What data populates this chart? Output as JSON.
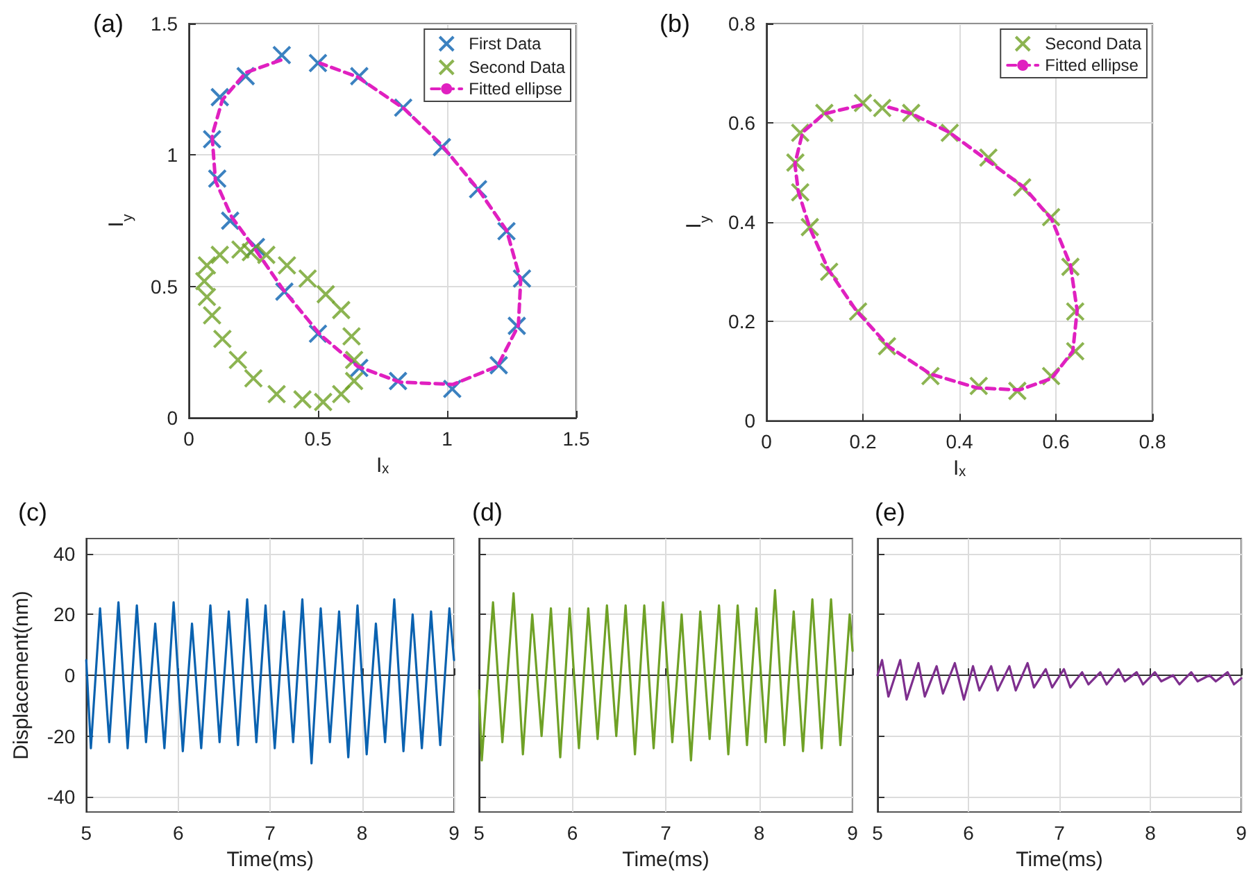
{
  "chart_data": [
    {
      "type": "scatter",
      "title": "(a)",
      "xlabel": "Iₓ",
      "ylabel": "I$_{y}$",
      "xlim": [
        0,
        1.5
      ],
      "ylim": [
        0,
        1.5
      ],
      "xticks": [
        0,
        0.5,
        1,
        1.5
      ],
      "yticks": [
        0,
        0.5,
        1,
        1.5
      ],
      "grid": true,
      "legend": "top right",
      "series": [
        {
          "name": "First Data",
          "type": "scatter",
          "color": "#0a62b0",
          "marker": "cross",
          "x": [
            0.36,
            0.22,
            0.12,
            0.09,
            0.11,
            0.16,
            0.26,
            0.37,
            0.5,
            0.66,
            0.81,
            1.02,
            1.2,
            1.27,
            1.29,
            1.23,
            1.12,
            0.98,
            0.83,
            0.66,
            0.5
          ],
          "values": [
            1.38,
            1.3,
            1.22,
            1.06,
            0.91,
            0.75,
            0.65,
            0.48,
            0.32,
            0.19,
            0.14,
            0.11,
            0.2,
            0.35,
            0.53,
            0.71,
            0.87,
            1.03,
            1.18,
            1.3,
            1.35
          ]
        },
        {
          "name": "Second Data",
          "type": "scatter",
          "color": "#6fa126",
          "marker": "cross",
          "x": [
            0.2,
            0.12,
            0.07,
            0.06,
            0.07,
            0.09,
            0.13,
            0.19,
            0.25,
            0.34,
            0.44,
            0.52,
            0.59,
            0.64,
            0.64,
            0.63,
            0.59,
            0.53,
            0.46,
            0.38,
            0.3,
            0.24
          ],
          "values": [
            0.64,
            0.62,
            0.58,
            0.52,
            0.46,
            0.39,
            0.3,
            0.22,
            0.15,
            0.09,
            0.07,
            0.06,
            0.09,
            0.14,
            0.22,
            0.31,
            0.41,
            0.47,
            0.53,
            0.58,
            0.62,
            0.63
          ]
        },
        {
          "name": "Fitted ellipse",
          "type": "line",
          "color": "#e020c0",
          "marker": "none",
          "line_style": "dashed",
          "x": [
            0.356,
            0.22,
            0.13,
            0.09,
            0.103,
            0.166,
            0.256,
            0.365,
            0.509,
            0.653,
            0.816,
            1.023,
            1.195,
            1.276,
            1.285,
            1.231,
            1.123,
            0.978,
            0.834,
            0.653,
            0.509
          ],
          "values": [
            1.361,
            1.313,
            1.21,
            1.074,
            0.902,
            0.764,
            0.643,
            0.488,
            0.316,
            0.196,
            0.136,
            0.127,
            0.196,
            0.351,
            0.523,
            0.712,
            0.866,
            1.039,
            1.176,
            1.297,
            1.349
          ]
        }
      ]
    },
    {
      "type": "scatter",
      "title": "(b)",
      "xlabel": "Iₓ",
      "ylabel": "I$_{y}$",
      "xlim": [
        0,
        0.8
      ],
      "ylim": [
        0,
        0.8
      ],
      "xticks": [
        0,
        0.2,
        0.4,
        0.6,
        0.8
      ],
      "yticks": [
        0,
        0.2,
        0.4,
        0.6,
        0.8
      ],
      "grid": true,
      "legend": "top right",
      "series": [
        {
          "name": "Second Data",
          "type": "scatter",
          "color": "#6fa126",
          "marker": "cross",
          "x": [
            0.2,
            0.12,
            0.07,
            0.06,
            0.07,
            0.09,
            0.13,
            0.19,
            0.25,
            0.34,
            0.44,
            0.52,
            0.59,
            0.64,
            0.64,
            0.63,
            0.59,
            0.53,
            0.46,
            0.38,
            0.3,
            0.24
          ],
          "values": [
            0.64,
            0.62,
            0.58,
            0.52,
            0.46,
            0.39,
            0.3,
            0.22,
            0.15,
            0.09,
            0.07,
            0.06,
            0.09,
            0.14,
            0.22,
            0.31,
            0.41,
            0.47,
            0.53,
            0.58,
            0.62,
            0.63
          ]
        },
        {
          "name": "Fitted ellipse",
          "type": "line",
          "color": "#e020c0",
          "marker": "none",
          "line_style": "dashed",
          "x": [
            0.196,
            0.119,
            0.075,
            0.059,
            0.066,
            0.09,
            0.128,
            0.186,
            0.254,
            0.34,
            0.437,
            0.524,
            0.591,
            0.635,
            0.644,
            0.63,
            0.591,
            0.533,
            0.456,
            0.379,
            0.302,
            0.244
          ],
          "values": [
            0.636,
            0.618,
            0.581,
            0.517,
            0.462,
            0.388,
            0.305,
            0.222,
            0.149,
            0.094,
            0.066,
            0.062,
            0.085,
            0.14,
            0.222,
            0.314,
            0.406,
            0.471,
            0.526,
            0.581,
            0.618,
            0.634
          ]
        }
      ]
    },
    {
      "type": "line",
      "title": "(c)",
      "xlabel": "Time(ms)",
      "ylabel": "Displacement(nm)",
      "xlim": [
        5,
        9
      ],
      "ylim": [
        -45,
        45
      ],
      "xticks": [
        5,
        6,
        7,
        8,
        9
      ],
      "yticks": [
        -40,
        -20,
        0,
        20,
        40
      ],
      "grid": true,
      "series": [
        {
          "color": "#0a62b0",
          "marker": "none",
          "line_style": "solid",
          "x": [
            5,
            5.05,
            5.15,
            5.25,
            5.35,
            5.45,
            5.55,
            5.65,
            5.75,
            5.85,
            5.95,
            6.05,
            6.15,
            6.25,
            6.35,
            6.45,
            6.55,
            6.65,
            6.75,
            6.85,
            6.95,
            7.05,
            7.15,
            7.25,
            7.35,
            7.45,
            7.55,
            7.65,
            7.75,
            7.85,
            7.95,
            8.05,
            8.15,
            8.25,
            8.35,
            8.45,
            8.55,
            8.65,
            8.75,
            8.85,
            8.95,
            9
          ],
          "values": [
            5,
            -24,
            22,
            -22,
            24,
            -24,
            23,
            -22,
            17,
            -24,
            24,
            -25,
            17,
            -24,
            23,
            -22,
            21,
            -23,
            25,
            -22,
            23,
            -24,
            21,
            -22,
            25,
            -29,
            22,
            -22,
            21,
            -27,
            23,
            -26,
            17,
            -22,
            25,
            -25,
            20,
            -24,
            21,
            -23,
            22,
            5
          ]
        }
      ]
    },
    {
      "type": "line",
      "title": "(d)",
      "xlim": [
        5,
        9
      ],
      "ylim": [
        -45,
        45
      ],
      "xticks": [
        5,
        6,
        7,
        8,
        9
      ],
      "yticks": [
        -40,
        -20,
        0,
        20,
        40
      ],
      "grid": true,
      "tick_labels": "x",
      "xlabel": "Time(ms)",
      "series": [
        {
          "color": "#6fa126",
          "marker": "none",
          "line_style": "solid",
          "x": [
            5,
            5.03,
            5.15,
            5.25,
            5.37,
            5.47,
            5.57,
            5.67,
            5.77,
            5.87,
            5.97,
            6.07,
            6.17,
            6.27,
            6.37,
            6.47,
            6.57,
            6.67,
            6.77,
            6.87,
            6.97,
            7.07,
            7.17,
            7.27,
            7.37,
            7.47,
            7.57,
            7.67,
            7.77,
            7.87,
            7.97,
            8.07,
            8.17,
            8.27,
            8.37,
            8.47,
            8.57,
            8.67,
            8.77,
            8.87,
            8.97,
            9
          ],
          "values": [
            -5,
            -28,
            24,
            -22,
            27,
            -26,
            20,
            -20,
            22,
            -27,
            22,
            -24,
            22,
            -21,
            23,
            -20,
            23,
            -26,
            23,
            -24,
            24,
            -22,
            20,
            -28,
            21,
            -21,
            23,
            -26,
            23,
            -23,
            22,
            -22,
            28,
            -23,
            21,
            -25,
            25,
            -24,
            25,
            -23,
            20,
            8
          ]
        }
      ]
    },
    {
      "type": "line",
      "title": "(e)",
      "xlim": [
        5,
        9
      ],
      "ylim": [
        -45,
        45
      ],
      "xticks": [
        5,
        6,
        7,
        8,
        9
      ],
      "yticks": [
        -40,
        -20,
        0,
        20,
        40
      ],
      "grid": true,
      "tick_labels": "x",
      "xlabel": "Time(ms)",
      "series": [
        {
          "color": "#7e2f8e",
          "marker": "none",
          "line_style": "solid",
          "x": [
            5,
            5.05,
            5.12,
            5.25,
            5.32,
            5.45,
            5.52,
            5.65,
            5.72,
            5.85,
            5.95,
            6.05,
            6.12,
            6.25,
            6.32,
            6.45,
            6.52,
            6.65,
            6.72,
            6.85,
            6.92,
            7.05,
            7.12,
            7.25,
            7.32,
            7.45,
            7.52,
            7.65,
            7.72,
            7.85,
            7.92,
            8.05,
            8.12,
            8.25,
            8.32,
            8.45,
            8.52,
            8.65,
            8.72,
            8.85,
            8.92,
            9
          ],
          "values": [
            0,
            5,
            -7,
            5,
            -8,
            4,
            -7,
            3,
            -6,
            4,
            -8,
            3,
            -5,
            3,
            -5,
            3,
            -5,
            4,
            -4,
            2,
            -4,
            2,
            -4,
            1,
            -3,
            1,
            -3,
            2,
            -2,
            1,
            -3,
            1,
            -2,
            0,
            -3,
            1,
            -2,
            0,
            -2,
            1,
            -3,
            -1
          ]
        }
      ]
    }
  ]
}
